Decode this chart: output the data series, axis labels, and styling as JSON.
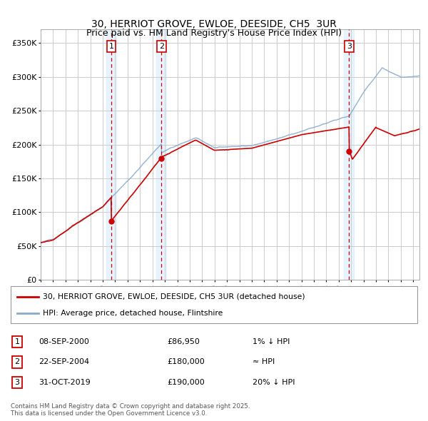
{
  "title": "30, HERRIOT GROVE, EWLOE, DEESIDE, CH5  3UR",
  "subtitle": "Price paid vs. HM Land Registry's House Price Index (HPI)",
  "xlim": [
    1995.0,
    2025.5
  ],
  "ylim": [
    0,
    370000
  ],
  "yticks": [
    0,
    50000,
    100000,
    150000,
    200000,
    250000,
    300000,
    350000
  ],
  "ytick_labels": [
    "£0",
    "£50K",
    "£100K",
    "£150K",
    "£200K",
    "£250K",
    "£300K",
    "£350K"
  ],
  "sale_dates_year": [
    2000.69,
    2004.73,
    2019.83
  ],
  "sale_prices": [
    86950,
    180000,
    190000
  ],
  "sale_labels": [
    "1",
    "2",
    "3"
  ],
  "vline_color": "#cc0000",
  "shade_color": "#ddeeff",
  "legend_line1": "30, HERRIOT GROVE, EWLOE, DEESIDE, CH5 3UR (detached house)",
  "legend_line2": "HPI: Average price, detached house, Flintshire",
  "legend_line1_color": "#cc0000",
  "legend_line2_color": "#88aacc",
  "table_data": [
    [
      "1",
      "08-SEP-2000",
      "£86,950",
      "1% ↓ HPI"
    ],
    [
      "2",
      "22-SEP-2004",
      "£180,000",
      "≈ HPI"
    ],
    [
      "3",
      "31-OCT-2019",
      "£190,000",
      "20% ↓ HPI"
    ]
  ],
  "footer": "Contains HM Land Registry data © Crown copyright and database right 2025.\nThis data is licensed under the Open Government Licence v3.0.",
  "background_color": "#ffffff",
  "grid_color": "#cccccc"
}
